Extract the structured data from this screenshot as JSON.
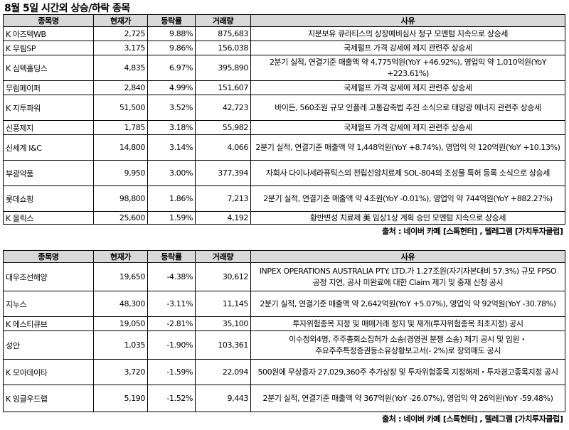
{
  "title": "8월 5일  시간외 상승/하락 종목",
  "columns": {
    "name": "종목명",
    "price": "현재가",
    "change": "등락률",
    "volume": "거래량",
    "reason": "사유"
  },
  "source": "출처 : 네이버 카페 [스톡헌터] , 텔레그램 [가치투자클럽]",
  "rising": [
    {
      "name": "K 아즈텍WB",
      "price": "2,725",
      "change": "9.88%",
      "volume": "875,683",
      "reason": "지분보유 큐라티스의 상장예비심사 청구 모멘텀 지속으로 상승세"
    },
    {
      "name": "K 무림SP",
      "price": "3,175",
      "change": "9.86%",
      "volume": "156,038",
      "reason": "국제펄프 가격 강세에 제지 관련주 상승세"
    },
    {
      "name": "K 심텍홀딩스",
      "price": "4,835",
      "change": "6.97%",
      "volume": "395,890",
      "reason": "2분기 실적, 연결기준 매출액 약 4,775억원(YoY +46.92%), 영업익 약 1,010억원(YoY +223.61%)"
    },
    {
      "name": "무림페이퍼",
      "price": "2,840",
      "change": "4.99%",
      "volume": "151,607",
      "reason": "국제펄프 가격 강세에 제지 관련주 상승세"
    },
    {
      "name": "K 지투파워",
      "price": "51,500",
      "change": "3.52%",
      "volume": "42,723",
      "reason": "바이든, 560조원 규모 인플레 고통감축법 추진 소식으로 태양광 에너지 관련주 상승세"
    },
    {
      "name": "신풍제지",
      "price": "1,785",
      "change": "3.18%",
      "volume": "55,982",
      "reason": "국제펄프 가격 강세에 제지 관련주 상승세"
    },
    {
      "name": "신세계 I&C",
      "price": "14,800",
      "change": "3.14%",
      "volume": "4,066",
      "reason": "2분기 실적, 연결기준 매출액 약 1,448억원(YoY +8.74%), 영업익 약 120억원(YoY +10.13%)"
    },
    {
      "name": "부광약품",
      "price": "9,950",
      "change": "3.00%",
      "volume": "377,394",
      "reason": "자회사 다이나세라퓨틱스의 전립선암치료제 SOL-804의 조성물 특허 등록 소식으로 상승세"
    },
    {
      "name": "롯데쇼핑",
      "price": "98,800",
      "change": "1.86%",
      "volume": "7,213",
      "reason": "2분기 실적, 연결기준 매출액 약 4조원(YoY -0.01%), 영업익 약 744억원(YoY +882.27%)"
    },
    {
      "name": "K 올릭스",
      "price": "25,600",
      "change": "1.59%",
      "volume": "4,192",
      "reason": "황반변성 치료제 美 임상1상 계획 승인 모멘텀 지속으로 상승세"
    }
  ],
  "falling": [
    {
      "name": "대우조선해양",
      "price": "19,650",
      "change": "-4.38%",
      "volume": "30,612",
      "reason": "INPEX OPERATIONS AUSTRALIA PTY. LTD.가 1.27조원(자기자본대비 57.3%) 규모 FPSO 공정 지연, 공사 미완료에 대한 Claim 제기 및 중재 신청 공시"
    },
    {
      "name": "지누스",
      "price": "48,300",
      "change": "-3.11%",
      "volume": "11,145",
      "reason": "2분기 실적, 연결기준 매출액 약 2,642억원(YoY +5.07%), 영업익 약 92억원(YoY -30.78%)"
    },
    {
      "name": "K 에스티큐브",
      "price": "19,050",
      "change": "-2.81%",
      "volume": "35,100",
      "reason": "투자위험종목 지정 및 매매거래 정지 및 재개(투자위험종목 최초지정) 공시"
    },
    {
      "name": "성안",
      "price": "1,035",
      "change": "-1.90%",
      "volume": "103,361",
      "reason": "이수정외4명, 주주총회소집허가 소송(경영권 분쟁 소송) 제기 공시 및 임원・주요주주특정증권등소유상황보고서(- 2%)로 장외매도 공시"
    },
    {
      "name": "K 모아데이타",
      "price": "3,720",
      "change": "-1.59%",
      "volume": "22,094",
      "reason": "500원에 무상증자 27,029,360주 추가상장 및 투자위험종목 지정해제・투자경고종목지정 공시"
    },
    {
      "name": "K 잉글우드랩",
      "price": "5,190",
      "change": "-1.52%",
      "volume": "9,443",
      "reason": "2분기 실적, 연결기준 매출액 약 367억원(YoY -26.07%), 영업익 약 26억원(YoY -59.48%)"
    }
  ]
}
